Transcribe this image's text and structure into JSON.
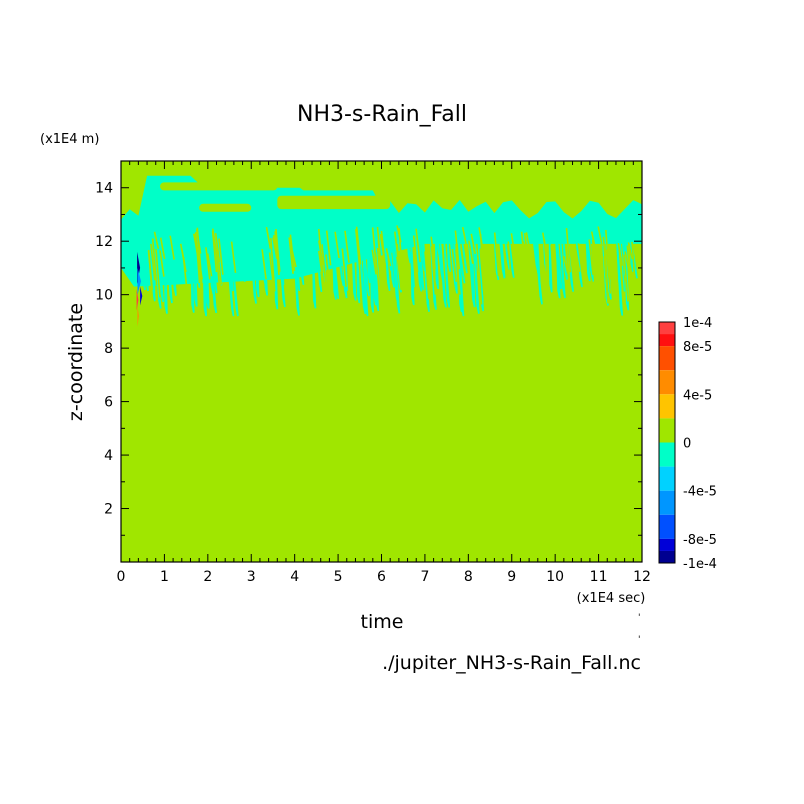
{
  "chart_data": {
    "type": "heatmap",
    "title": "NH3-s-Rain_Fall",
    "xlabel": "time",
    "ylabel": "z-coordinate",
    "x_unit": "(x1E4 sec)",
    "y_unit": "(x1E4 m)",
    "xlim": [
      0,
      12
    ],
    "ylim": [
      0,
      15
    ],
    "x_ticks": [
      "0",
      "1",
      "2",
      "3",
      "4",
      "5",
      "6",
      "7",
      "8",
      "9",
      "10",
      "11",
      "12"
    ],
    "y_ticks": [
      "2",
      "4",
      "6",
      "8",
      "10",
      "12",
      "14"
    ],
    "background_level": 0,
    "colorbar": {
      "labels": [
        "1e-4",
        "8e-5",
        "4e-5",
        "0",
        "-4e-5",
        "-8e-5",
        "-1e-4"
      ],
      "bands": [
        {
          "from": 0.0001,
          "to": 9e-05,
          "color": "#ff4040"
        },
        {
          "from": 9e-05,
          "to": 8e-05,
          "color": "#ff1010"
        },
        {
          "from": 8e-05,
          "to": 6e-05,
          "color": "#ff5000"
        },
        {
          "from": 6e-05,
          "to": 4e-05,
          "color": "#ff8c00"
        },
        {
          "from": 4e-05,
          "to": 2e-05,
          "color": "#ffc400"
        },
        {
          "from": 2e-05,
          "to": 0,
          "color": "#a0e600"
        },
        {
          "from": 0,
          "to": -2e-05,
          "color": "#00ffc8"
        },
        {
          "from": -2e-05,
          "to": -4e-05,
          "color": "#00d2ff"
        },
        {
          "from": -4e-05,
          "to": -6e-05,
          "color": "#0096ff"
        },
        {
          "from": -6e-05,
          "to": -8e-05,
          "color": "#0050ff"
        },
        {
          "from": -8e-05,
          "to": -9e-05,
          "color": "#0000d8"
        },
        {
          "from": -9e-05,
          "to": -0.0001,
          "color": "#000090"
        }
      ]
    },
    "regions": {
      "negative_band": {
        "level": -1e-05,
        "x_range": [
          0,
          12
        ],
        "z_range": [
          10.6,
          14.4
        ]
      },
      "cloud_top_gaps": [
        {
          "x": [
            0.9,
            3.6
          ],
          "z": [
            13.9,
            14.2
          ]
        },
        {
          "x": [
            3.6,
            6.2
          ],
          "z": [
            13.2,
            13.7
          ]
        },
        {
          "x": [
            1.8,
            3.0
          ],
          "z": [
            13.1,
            13.4
          ]
        },
        {
          "x": [
            2.0,
            12.0
          ],
          "z": [
            14.0,
            15.0
          ]
        }
      ],
      "streak_zone": {
        "x_range": [
          0.5,
          12
        ],
        "z_top": 12.0,
        "z_bottom_min": 9.2,
        "level": -1e-05
      },
      "spike": {
        "x": 0.42,
        "z_range": [
          8.8,
          11.6
        ],
        "min": -0.0001,
        "max": 0.0001
      }
    },
    "annotation": "./jupiter_NH3-s-Rain_Fall.nc"
  }
}
